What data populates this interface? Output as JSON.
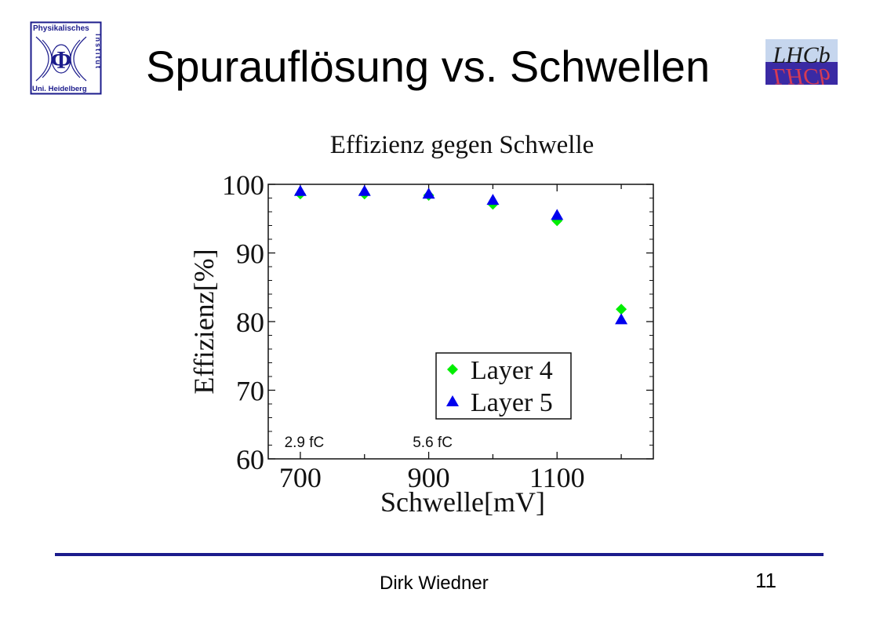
{
  "slide": {
    "title": "Spurauflösung vs. Schwellen",
    "author": "Dirk Wiedner",
    "page_number": "11"
  },
  "logos": {
    "left": {
      "line1": "Physikalisches",
      "line2": "Uni. Heidelberg",
      "side": "Institut",
      "symbol": "Φ"
    },
    "right": {
      "text": "LHCb"
    }
  },
  "colors": {
    "footer_line": "#1c1c8c",
    "layer4": "#00ee00",
    "layer5": "#0000ee",
    "logo_left": "#1c1c8c",
    "logo_right_top": "#c6d6ee",
    "logo_right_bottom": "#3a2aa4"
  },
  "chart_data": {
    "type": "scatter",
    "title": "Effizienz gegen Schwelle",
    "xlabel": "Schwelle[mV]",
    "ylabel": "Effizienz[%]",
    "xlim": [
      650,
      1250
    ],
    "ylim": [
      60,
      100
    ],
    "x_ticks": [
      700,
      900,
      1100
    ],
    "x_tick_labels": [
      "700",
      "900",
      "1100"
    ],
    "y_ticks": [
      60,
      70,
      80,
      90,
      100
    ],
    "y_tick_labels": [
      "60",
      "70",
      "80",
      "90",
      "100"
    ],
    "grid": false,
    "legend_position": "lower-right",
    "series": [
      {
        "name": "Layer 4",
        "marker": "diamond",
        "color": "#00ee00",
        "x": [
          700,
          800,
          900,
          1000,
          1100,
          1200
        ],
        "y": [
          98.6,
          98.6,
          98.4,
          97.1,
          94.7,
          81.8
        ]
      },
      {
        "name": "Layer 5",
        "marker": "triangle",
        "color": "#0000ee",
        "x": [
          700,
          800,
          900,
          1000,
          1100,
          1200
        ],
        "y": [
          99.0,
          99.0,
          98.6,
          97.7,
          95.5,
          80.3
        ]
      }
    ],
    "annotations": [
      {
        "text": "2.9 fC",
        "x": 700,
        "y": 62.5
      },
      {
        "text": "5.6 fC",
        "x": 900,
        "y": 62.5
      }
    ]
  }
}
